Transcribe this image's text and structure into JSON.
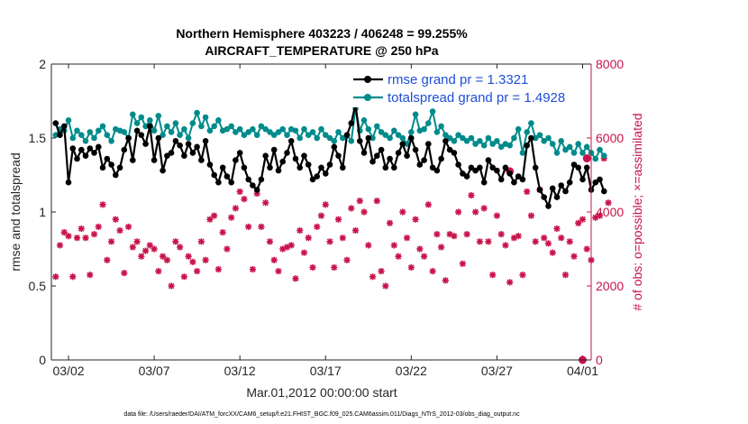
{
  "chart_data": {
    "type": "line",
    "title_line1": "Northern Hemisphere 403223 / 406248 = 99.255%",
    "title_line2": "AIRCRAFT_TEMPERATURE @ 250 hPa",
    "xlabel": "Mar.01,2012 00:00:00 start",
    "ylabel_left": "rmse and totalspread",
    "ylabel_right": "# of obs: o=possible; ×=assimilated",
    "footnote": "data file: /Users/raeder/DAI/ATM_forcXX/CAM6_setup/f.e21.FHIST_BGC.f09_025.CAM6assim.011/Diags_NTrS_2012-03/obs_diag_output.nc",
    "xlim": [
      0,
      31.5
    ],
    "ylim_left": [
      0,
      2
    ],
    "ylim_right": [
      0,
      8000
    ],
    "x_ticks": [
      {
        "value": 1.0,
        "label": "03/02"
      },
      {
        "value": 6.0,
        "label": "03/07"
      },
      {
        "value": 11.0,
        "label": "03/12"
      },
      {
        "value": 16.0,
        "label": "03/17"
      },
      {
        "value": 21.0,
        "label": "03/22"
      },
      {
        "value": 26.0,
        "label": "03/27"
      },
      {
        "value": 31.0,
        "label": "04/01"
      }
    ],
    "y_ticks_left": [
      "0",
      "0.5",
      "1",
      "1.5",
      "2"
    ],
    "y_ticks_right": [
      "0",
      "2000",
      "4000",
      "6000",
      "8000"
    ],
    "legend": [
      {
        "label": "rmse grand pr = 1.3321",
        "color": "#000000"
      },
      {
        "label": "totalspread grand pr = 1.4928",
        "color": "#008b8b"
      }
    ],
    "x_start": 0.25,
    "x_step": 0.25,
    "series": [
      {
        "name": "rmse",
        "color": "#000000",
        "values": [
          1.6,
          1.52,
          1.58,
          1.2,
          1.43,
          1.36,
          1.42,
          1.38,
          1.43,
          1.4,
          1.44,
          1.3,
          1.36,
          1.32,
          1.25,
          1.3,
          1.42,
          1.5,
          1.35,
          1.55,
          1.52,
          1.46,
          1.58,
          1.35,
          1.5,
          1.28,
          1.38,
          1.4,
          1.48,
          1.45,
          1.38,
          1.46,
          1.4,
          1.44,
          1.35,
          1.48,
          1.32,
          1.25,
          1.2,
          1.3,
          1.24,
          1.2,
          1.35,
          1.4,
          1.3,
          1.22,
          1.18,
          1.15,
          1.22,
          1.38,
          1.3,
          1.42,
          1.28,
          1.34,
          1.4,
          1.48,
          1.36,
          1.3,
          1.38,
          1.32,
          1.22,
          1.24,
          1.3,
          1.26,
          1.32,
          1.44,
          1.38,
          1.3,
          1.52,
          1.6,
          1.73,
          1.48,
          1.4,
          1.5,
          1.34,
          1.38,
          1.42,
          1.3,
          1.36,
          1.3,
          1.4,
          1.46,
          1.38,
          1.5,
          1.42,
          1.32,
          1.35,
          1.46,
          1.3,
          1.28,
          1.36,
          1.48,
          1.42,
          1.4,
          1.32,
          1.26,
          1.24,
          1.3,
          1.28,
          1.3,
          1.2,
          1.35,
          1.3,
          1.28,
          1.22,
          1.3,
          1.26,
          1.2,
          1.24,
          1.22,
          1.45,
          1.5,
          1.3,
          1.15,
          1.1,
          1.04,
          1.16,
          1.1,
          1.18,
          1.14,
          1.2,
          1.32,
          1.3,
          1.22,
          1.3,
          1.15,
          1.2,
          1.22,
          1.14
        ]
      },
      {
        "name": "totalspread",
        "color": "#008b8b",
        "values": [
          1.52,
          1.56,
          1.55,
          1.62,
          1.5,
          1.55,
          1.52,
          1.48,
          1.54,
          1.5,
          1.55,
          1.58,
          1.52,
          1.48,
          1.56,
          1.55,
          1.54,
          1.5,
          1.66,
          1.6,
          1.64,
          1.58,
          1.62,
          1.55,
          1.65,
          1.52,
          1.58,
          1.54,
          1.6,
          1.52,
          1.56,
          1.5,
          1.6,
          1.67,
          1.58,
          1.64,
          1.55,
          1.58,
          1.62,
          1.55,
          1.56,
          1.58,
          1.54,
          1.56,
          1.52,
          1.54,
          1.56,
          1.52,
          1.58,
          1.56,
          1.54,
          1.52,
          1.54,
          1.56,
          1.52,
          1.56,
          1.55,
          1.5,
          1.56,
          1.52,
          1.54,
          1.5,
          1.56,
          1.52,
          1.5,
          1.48,
          1.54,
          1.5,
          1.52,
          1.48,
          1.7,
          1.55,
          1.62,
          1.56,
          1.5,
          1.58,
          1.54,
          1.52,
          1.5,
          1.55,
          1.52,
          1.5,
          1.46,
          1.54,
          1.66,
          1.55,
          1.56,
          1.6,
          1.68,
          1.54,
          1.58,
          1.52,
          1.5,
          1.48,
          1.52,
          1.5,
          1.48,
          1.5,
          1.46,
          1.48,
          1.45,
          1.5,
          1.46,
          1.48,
          1.44,
          1.46,
          1.45,
          1.5,
          1.56,
          1.4,
          1.54,
          1.6,
          1.5,
          1.52,
          1.48,
          1.5,
          1.46,
          1.4,
          1.48,
          1.42,
          1.44,
          1.4,
          1.46,
          1.4,
          1.44,
          1.4,
          1.36,
          1.42,
          1.38
        ]
      },
      {
        "name": "assimilated obs count",
        "color": "#c8134a",
        "axis": "right",
        "values": [
          2250,
          3100,
          3450,
          3350,
          2250,
          3300,
          3550,
          3300,
          2300,
          3400,
          3600,
          4200,
          2700,
          3200,
          3800,
          3500,
          2350,
          3600,
          3050,
          3200,
          2800,
          2950,
          3100,
          3000,
          2400,
          2800,
          2700,
          2000,
          3200,
          3050,
          2250,
          2800,
          2650,
          2400,
          3200,
          2700,
          3800,
          3900,
          2450,
          3450,
          3000,
          3850,
          4100,
          4550,
          4350,
          3600,
          2450,
          4500,
          3600,
          4250,
          3200,
          2700,
          2400,
          3000,
          3050,
          3100,
          2200,
          3500,
          2900,
          3300,
          2500,
          3600,
          3900,
          4200,
          3200,
          2500,
          3800,
          3300,
          2700,
          4100,
          3500,
          4300,
          4000,
          3100,
          2250,
          4300,
          2400,
          2000,
          3700,
          3100,
          2800,
          4000,
          3300,
          2500,
          3800,
          3000,
          2800,
          4200,
          2400,
          3400,
          3050,
          2150,
          3400,
          3350,
          4000,
          2600,
          3400,
          4450,
          4000,
          3200,
          4100,
          3200,
          2300,
          3900,
          3400,
          3100,
          2100,
          3300,
          3350,
          2300,
          4550,
          3900,
          3200,
          4600,
          3300,
          3150,
          2900,
          3550,
          3300,
          2300,
          3200,
          2800,
          3700,
          3800,
          3000,
          2700,
          3850,
          3900,
          5450,
          4250
        ]
      },
      {
        "name": "possible obs count",
        "color": "#c8134a",
        "axis": "right",
        "marker": "circle",
        "points": [
          [
            26.75,
            5100
          ],
          [
            31.25,
            5450
          ],
          [
            31.0,
            0
          ]
        ]
      }
    ]
  }
}
